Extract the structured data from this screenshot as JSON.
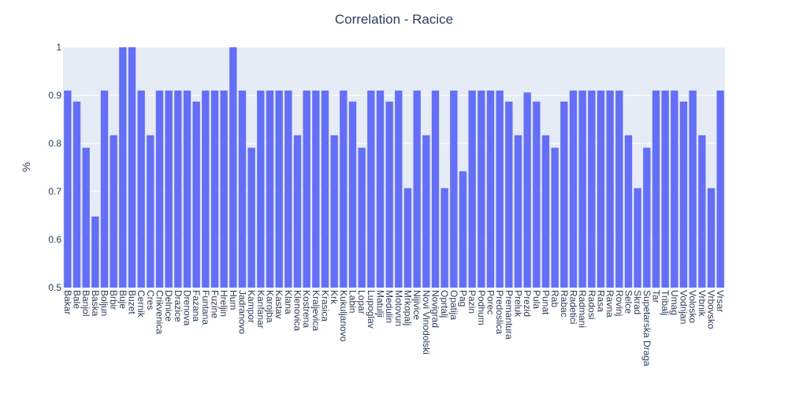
{
  "chart_data": {
    "type": "bar",
    "title": "Correlation - Racice",
    "xlabel": "",
    "ylabel": "%",
    "ylim": [
      0.5,
      1.0
    ],
    "yticks": [
      "0.5",
      "0.6",
      "0.7",
      "0.8",
      "0.9",
      "1"
    ],
    "grid": true,
    "colors": {
      "bar": "#636efa",
      "plot_bg": "#e5ecf6",
      "grid": "#ffffff",
      "text": "#2a3f5f"
    },
    "categories": [
      "Bakar",
      "Bale",
      "Banjol",
      "Baska",
      "Boljun",
      "Brbir",
      "Buje",
      "Buzet",
      "Cernik",
      "Cres",
      "Crikvenica",
      "Delnice",
      "Drazice",
      "Drenova",
      "Fazana",
      "Funtana",
      "Fuzine",
      "Hreljin",
      "Hum",
      "Jadranovo",
      "Kampor",
      "Kanfanar",
      "Karojba",
      "Kastav",
      "Klana",
      "Klenovica",
      "Kostrena",
      "Kraljevica",
      "Krasica",
      "Krk",
      "Kukuljanovo",
      "Labin",
      "Lopar",
      "Lupoglav",
      "Matulji",
      "Medulin",
      "Motovun",
      "Mrkopalj",
      "Nijivice",
      "Novi Vinodolski",
      "Novigrad",
      "Oprtalj",
      "Opatija",
      "Pag",
      "Pazin",
      "Podhum",
      "Porec",
      "Predoslica",
      "Premantura",
      "Preluk",
      "Prezid",
      "Pula",
      "Punat",
      "Rab",
      "Rabac",
      "Radetici",
      "Radmani",
      "Radosi",
      "Rasa",
      "Ravna",
      "Rovinj",
      "Selce",
      "Skrad",
      "Supetarska Draga",
      "Tar",
      "Tribalj",
      "Umag",
      "Vodnjan",
      "Volosko",
      "Vrbnik",
      "Vrbovsko",
      "Vrsar"
    ],
    "values": [
      0.91,
      0.887,
      0.791,
      0.648,
      0.91,
      0.817,
      1.0,
      1.0,
      0.91,
      0.817,
      0.91,
      0.91,
      0.91,
      0.91,
      0.887,
      0.91,
      0.91,
      0.91,
      1.0,
      0.91,
      0.791,
      0.91,
      0.91,
      0.91,
      0.91,
      0.817,
      0.91,
      0.91,
      0.91,
      0.817,
      0.91,
      0.887,
      0.791,
      0.91,
      0.91,
      0.887,
      0.91,
      0.707,
      0.91,
      0.817,
      0.91,
      0.707,
      0.91,
      0.742,
      0.91,
      0.91,
      0.91,
      0.91,
      0.887,
      0.817,
      0.906,
      0.887,
      0.817,
      0.791,
      0.887,
      0.91,
      0.91,
      0.91,
      0.91,
      0.91,
      0.91,
      0.817,
      0.707,
      0.791,
      0.91,
      0.91,
      0.91,
      0.887,
      0.91,
      0.817,
      0.707,
      0.91
    ]
  }
}
